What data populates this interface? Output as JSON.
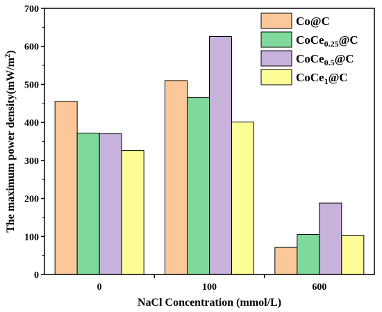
{
  "chart_data": {
    "type": "bar",
    "xlabel": "NaCl Concentration (mmol/L)",
    "ylabel": {
      "main": "The maximum power density(mW/m",
      "sup": "2",
      "close": ")"
    },
    "categories": [
      "0",
      "100",
      "600"
    ],
    "ylim": [
      0,
      700
    ],
    "yticks": [
      0,
      100,
      200,
      300,
      400,
      500,
      600,
      700
    ],
    "legend_position": "top-right",
    "series": [
      {
        "name": {
          "pre": "Co@C",
          "sub": "",
          "post": ""
        },
        "color": "#fcc799",
        "values": [
          455,
          510,
          71
        ]
      },
      {
        "name": {
          "pre": "CoCe",
          "sub": "0.25",
          "post": "@C"
        },
        "color": "#80d99c",
        "values": [
          372,
          465,
          105
        ]
      },
      {
        "name": {
          "pre": "CoCe",
          "sub": "0.5",
          "post": "@C"
        },
        "color": "#c6b2db",
        "values": [
          370,
          626,
          188
        ]
      },
      {
        "name": {
          "pre": "CoCe",
          "sub": "1",
          "post": "@C"
        },
        "color": "#fdfd98",
        "values": [
          326,
          401,
          103
        ]
      }
    ]
  }
}
